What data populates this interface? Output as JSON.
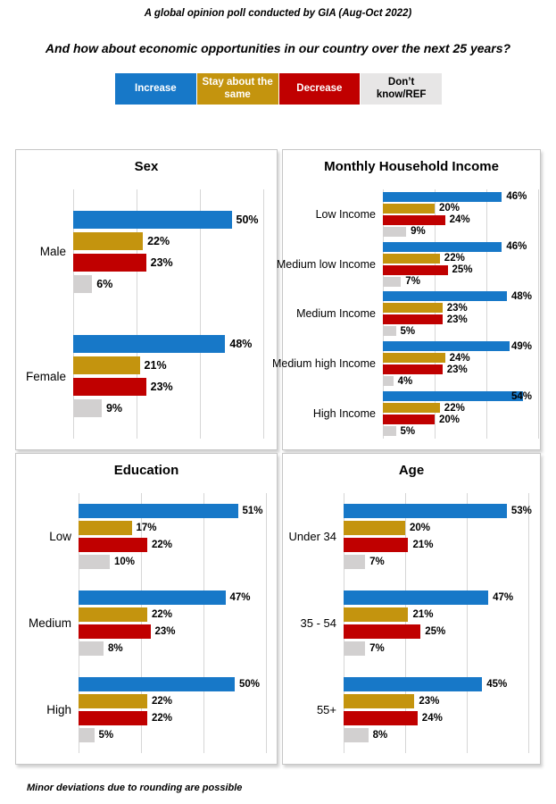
{
  "header": {
    "title": "A global opinion poll conducted by GIA (Aug-Oct 2022)",
    "question": "And how about economic opportunities in our country over the next 25 years?"
  },
  "legend": {
    "items": [
      {
        "label": "Increase",
        "color": "#1778C8",
        "text_color": "#ffffff"
      },
      {
        "label": "Stay about the same",
        "color": "#C4940E",
        "text_color": "#ffffff"
      },
      {
        "label": "Decrease",
        "color": "#C00000",
        "text_color": "#ffffff"
      },
      {
        "label": "Don’t know/REF",
        "color": "#E7E6E6",
        "text_color": "#000000"
      }
    ]
  },
  "colors": {
    "series": {
      "Increase": "#1778C8",
      "Stay about the same": "#C4940E",
      "Decrease": "#C00000",
      "Don’t know/REF": "#D2D0D0"
    },
    "gridline": "#D6D6D6",
    "panel_border": "#C6C6C6"
  },
  "footer": {
    "note": "Minor deviations due to rounding are possible"
  },
  "chart_data": [
    {
      "type": "bar",
      "orientation": "horizontal",
      "title": "Sex",
      "categories": [
        "Male",
        "Female"
      ],
      "series": [
        {
          "name": "Increase",
          "values": [
            50,
            48
          ]
        },
        {
          "name": "Stay about the same",
          "values": [
            22,
            21
          ]
        },
        {
          "name": "Decrease",
          "values": [
            23,
            23
          ]
        },
        {
          "name": "Don’t know/REF",
          "values": [
            6,
            9
          ]
        }
      ],
      "unit": "%",
      "xlim": [
        0,
        60
      ],
      "gridlines": [
        0,
        20,
        40,
        60
      ],
      "grid": true,
      "value_labels": true,
      "legend_position": "top-shared"
    },
    {
      "type": "bar",
      "orientation": "horizontal",
      "title": "Monthly Household Income",
      "categories": [
        "Low Income",
        "Medium low Income",
        "Medium Income",
        "Medium high Income",
        "High Income"
      ],
      "series": [
        {
          "name": "Increase",
          "values": [
            46,
            46,
            48,
            49,
            54
          ]
        },
        {
          "name": "Stay about the same",
          "values": [
            20,
            22,
            23,
            24,
            22
          ]
        },
        {
          "name": "Decrease",
          "values": [
            24,
            25,
            23,
            23,
            20
          ]
        },
        {
          "name": "Don’t know/REF",
          "values": [
            9,
            7,
            5,
            4,
            5
          ]
        }
      ],
      "unit": "%",
      "xlim": [
        0,
        60
      ],
      "gridlines": [
        0,
        20,
        40,
        60
      ],
      "grid": true,
      "value_labels": true,
      "legend_position": "top-shared"
    },
    {
      "type": "bar",
      "orientation": "horizontal",
      "title": "Education",
      "categories": [
        "Low",
        "Medium",
        "High"
      ],
      "series": [
        {
          "name": "Increase",
          "values": [
            51,
            47,
            50
          ]
        },
        {
          "name": "Stay about the same",
          "values": [
            17,
            22,
            22
          ]
        },
        {
          "name": "Decrease",
          "values": [
            22,
            23,
            22
          ]
        },
        {
          "name": "Don’t know/REF",
          "values": [
            10,
            8,
            5
          ]
        }
      ],
      "unit": "%",
      "xlim": [
        0,
        60
      ],
      "gridlines": [
        0,
        20,
        40,
        60
      ],
      "grid": true,
      "value_labels": true,
      "legend_position": "top-shared"
    },
    {
      "type": "bar",
      "orientation": "horizontal",
      "title": "Age",
      "categories": [
        "Under 34",
        "35 - 54",
        "55+"
      ],
      "series": [
        {
          "name": "Increase",
          "values": [
            53,
            47,
            45
          ]
        },
        {
          "name": "Stay about the same",
          "values": [
            20,
            21,
            23
          ]
        },
        {
          "name": "Decrease",
          "values": [
            21,
            25,
            24
          ]
        },
        {
          "name": "Don’t know/REF",
          "values": [
            7,
            7,
            8
          ]
        }
      ],
      "unit": "%",
      "xlim": [
        0,
        60
      ],
      "gridlines": [
        0,
        20,
        40,
        60
      ],
      "grid": true,
      "value_labels": true,
      "legend_position": "top-shared"
    }
  ]
}
